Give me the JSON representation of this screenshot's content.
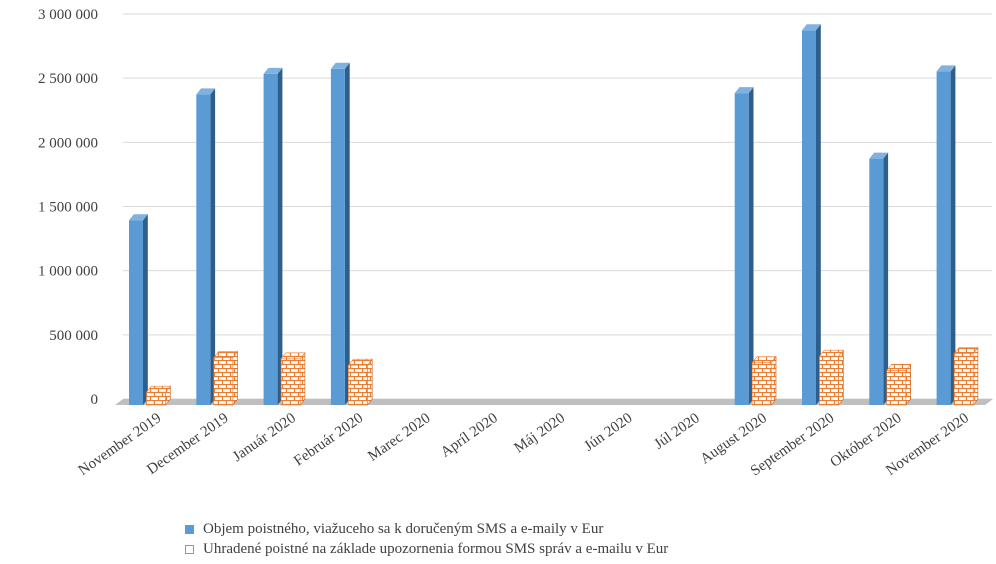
{
  "chart_data": {
    "type": "bar",
    "categories": [
      "November 2019",
      "December 2019",
      "Január 2020",
      "Február 2020",
      "Marec 2020",
      "Apríl 2020",
      "Máj 2020",
      "Jún 2020",
      "Júl 2020",
      "August 2020",
      "September 2020",
      "Október 2020",
      "November 2020"
    ],
    "series": [
      {
        "name": "Objem poistného, viažuceho sa k doručeným SMS a    e-maily v Eur",
        "color": "#5b9bd5",
        "values": [
          1440000,
          2420000,
          2580000,
          2620000,
          0,
          0,
          0,
          0,
          0,
          2430000,
          2920000,
          1920000,
          2600000
        ]
      },
      {
        "name": "Uhradené poistné na základe upozornenia formou SMS správ a e-mailu v Eur",
        "color": "#ed7d31",
        "pattern": "brick",
        "values": [
          100000,
          370000,
          360000,
          310000,
          0,
          0,
          0,
          0,
          0,
          330000,
          380000,
          270000,
          400000
        ]
      }
    ],
    "ylim": [
      0,
      3000000
    ],
    "yticks": [
      "0",
      "500 000",
      "1 000 000",
      "1 500 000",
      "2 000 000",
      "2 500 000",
      "3 000 000"
    ],
    "grid": true,
    "legend_position": "bottom",
    "style": "3d-column"
  }
}
